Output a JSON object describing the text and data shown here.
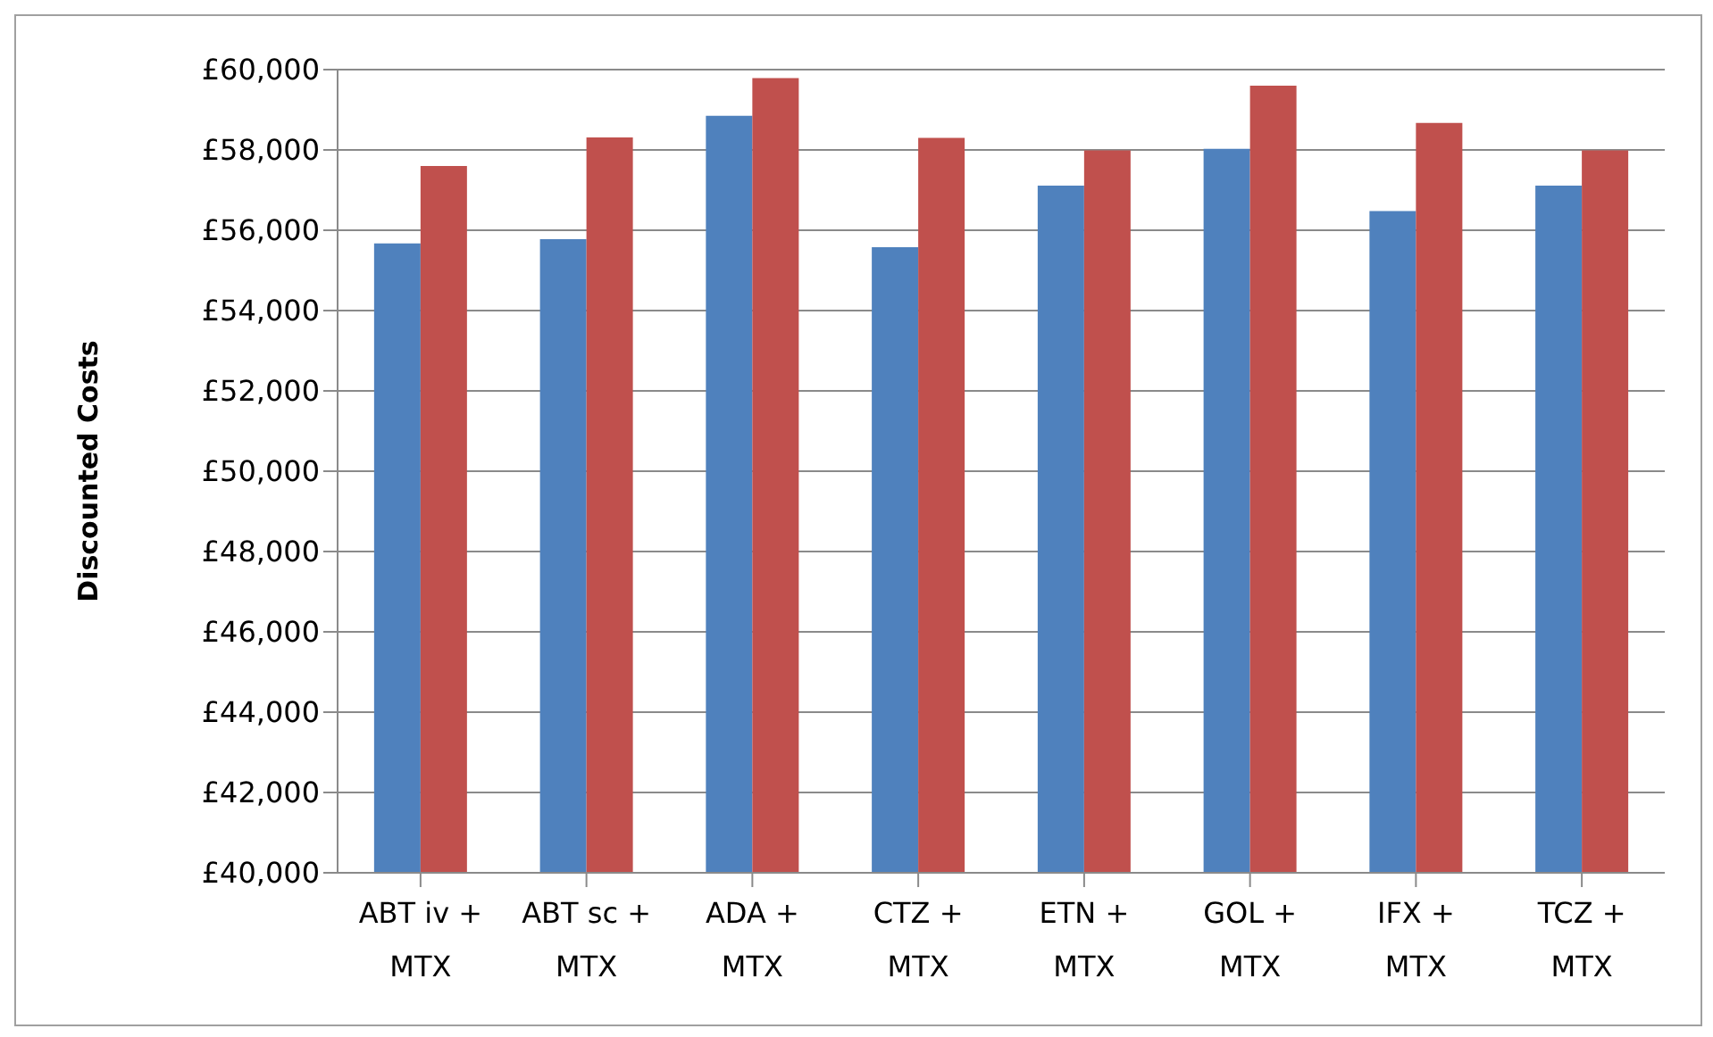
{
  "chart_data": {
    "type": "bar",
    "ylabel": "Discounted Costs",
    "categories": [
      "ABT iv + MTX",
      "ABT sc + MTX",
      "ADA + MTX",
      "CTZ + MTX",
      "ETN + MTX",
      "GOL + MTX",
      "IFX + MTX",
      "TCZ + MTX"
    ],
    "series": [
      {
        "color": "#4f81bd",
        "values": [
          55670,
          55780,
          58850,
          55580,
          57110,
          58030,
          56480,
          57110
        ]
      },
      {
        "color": "#c0504d",
        "values": [
          57600,
          58310,
          59790,
          58300,
          57990,
          59600,
          58670,
          57990
        ]
      }
    ],
    "ylim": [
      40000,
      60000
    ],
    "yticks": [
      {
        "value": 40000,
        "label": "£40,000"
      },
      {
        "value": 42000,
        "label": "£42,000"
      },
      {
        "value": 44000,
        "label": "£44,000"
      },
      {
        "value": 46000,
        "label": "£46,000"
      },
      {
        "value": 48000,
        "label": "£48,000"
      },
      {
        "value": 50000,
        "label": "£50,000"
      },
      {
        "value": 52000,
        "label": "£52,000"
      },
      {
        "value": 54000,
        "label": "£54,000"
      },
      {
        "value": 56000,
        "label": "£56,000"
      },
      {
        "value": 58000,
        "label": "£58,000"
      },
      {
        "value": 60000,
        "label": "£60,000"
      }
    ],
    "grid": "y"
  }
}
